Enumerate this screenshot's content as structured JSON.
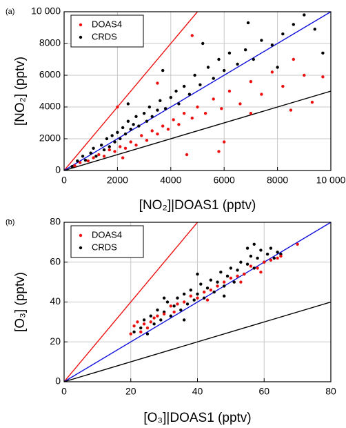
{
  "chart_data": [
    {
      "type": "scatter",
      "panel_label": "(a)",
      "xlabel": "[NO₂]|DOAS1 (pptv)",
      "ylabel": "[NO₂] (pptv)",
      "xlim": [
        0,
        10000
      ],
      "ylim": [
        0,
        10000
      ],
      "xticks": [
        0,
        2000,
        4000,
        6000,
        8000,
        {
          "value": 10000,
          "label": "10 000"
        }
      ],
      "yticks": [
        0,
        2000,
        4000,
        6000,
        8000,
        {
          "value": 10000,
          "label": "10 000"
        }
      ],
      "grid": true,
      "legend": "upper left",
      "series": [
        {
          "name": "CRDS",
          "color": "#000000",
          "x": [
            300,
            500,
            700,
            800,
            1000,
            1100,
            1200,
            1400,
            1500,
            1600,
            1700,
            1800,
            1900,
            2000,
            2100,
            2200,
            2300,
            2400,
            2500,
            2600,
            2700,
            2800,
            3000,
            3100,
            3200,
            3300,
            3500,
            3600,
            3800,
            4000,
            4200,
            4300,
            4500,
            4700,
            4900,
            5100,
            5400,
            5600,
            5800,
            6000,
            6200,
            6500,
            6800,
            7100,
            7400,
            7800,
            8200,
            8600,
            9000,
            9400,
            9700,
            5200,
            3700,
            2400,
            8000,
            6900
          ],
          "values": [
            250,
            600,
            900,
            650,
            1100,
            1400,
            900,
            1600,
            1300,
            2000,
            1500,
            2200,
            1800,
            2400,
            2000,
            2700,
            2300,
            3100,
            2600,
            2900,
            3400,
            2800,
            3600,
            3100,
            4000,
            3400,
            3800,
            4400,
            3900,
            4600,
            5000,
            4200,
            5300,
            4800,
            6000,
            5400,
            6500,
            5800,
            7000,
            6300,
            7400,
            6700,
            7600,
            7000,
            8200,
            7900,
            8600,
            9200,
            9800,
            8900,
            7400,
            8000,
            6300,
            4200,
            6500,
            9300
          ]
        },
        {
          "name": "DOAS4",
          "color": "#ee1111",
          "x": [
            400,
            600,
            900,
            1100,
            1300,
            1500,
            1700,
            1900,
            2100,
            2300,
            2500,
            2700,
            2900,
            3100,
            3300,
            3500,
            3700,
            3900,
            4100,
            4300,
            4500,
            4800,
            5000,
            5300,
            5600,
            5900,
            6200,
            6600,
            7000,
            7400,
            7800,
            8200,
            8600,
            9000,
            9300,
            9700,
            2000,
            3500,
            4800,
            6000,
            5800,
            4600,
            8500,
            7000,
            2200
          ],
          "values": [
            300,
            500,
            600,
            800,
            1000,
            900,
            1300,
            1200,
            1500,
            1400,
            1800,
            1600,
            2200,
            1900,
            2500,
            2300,
            2800,
            2600,
            3200,
            2900,
            3600,
            3300,
            4000,
            3600,
            4500,
            3900,
            5000,
            4200,
            5600,
            4800,
            6200,
            5300,
            7000,
            6000,
            4300,
            5900,
            4000,
            5500,
            8500,
            1800,
            1200,
            1000,
            3800,
            3600,
            800
          ]
        }
      ],
      "reference_lines": [
        {
          "color": "#ee1111",
          "x": [
            0,
            5000
          ],
          "y": [
            0,
            10000
          ]
        },
        {
          "color": "#1111dd",
          "x": [
            0,
            10000
          ],
          "y": [
            0,
            10000
          ]
        },
        {
          "color": "#000000",
          "x": [
            0,
            10000
          ],
          "y": [
            0,
            5000
          ]
        }
      ]
    },
    {
      "type": "scatter",
      "panel_label": "(b)",
      "xlabel": "[O₃]|DOAS1 (pptv)",
      "ylabel": "[O₃] (pptv)",
      "xlim": [
        0,
        80
      ],
      "ylim": [
        0,
        80
      ],
      "xticks": [
        0,
        20,
        40,
        60,
        80
      ],
      "yticks": [
        0,
        20,
        40,
        60,
        80
      ],
      "grid": true,
      "legend": "upper left",
      "series": [
        {
          "name": "CRDS",
          "color": "#000000",
          "x": [
            21,
            23,
            24,
            25,
            26,
            27,
            28,
            29,
            30,
            31,
            32,
            33,
            34,
            35,
            36,
            37,
            38,
            39,
            40,
            41,
            42,
            43,
            44,
            45,
            46,
            47,
            48,
            49,
            50,
            51,
            52,
            53,
            54,
            55,
            56,
            57,
            58,
            59,
            60,
            61,
            62,
            63,
            64,
            65,
            57,
            55,
            30,
            40,
            36,
            48
          ],
          "values": [
            25,
            27,
            31,
            24,
            33,
            29,
            36,
            31,
            35,
            40,
            33,
            38,
            42,
            36,
            44,
            39,
            46,
            41,
            44,
            49,
            42,
            47,
            51,
            45,
            50,
            55,
            48,
            53,
            57,
            50,
            56,
            60,
            54,
            59,
            63,
            57,
            62,
            66,
            60,
            64,
            67,
            62,
            65,
            64,
            69,
            67,
            42,
            54,
            31,
            43
          ]
        },
        {
          "name": "DOAS4",
          "color": "#ee1111",
          "x": [
            20,
            21,
            22,
            23,
            24,
            25,
            26,
            27,
            28,
            30,
            32,
            34,
            36,
            38,
            40,
            42,
            44,
            46,
            48,
            50,
            52,
            54,
            56,
            58,
            60,
            62,
            64,
            65,
            70,
            33,
            43,
            53,
            59
          ],
          "values": [
            24,
            28,
            30,
            25,
            29,
            27,
            30,
            32,
            33,
            34,
            38,
            39,
            40,
            43,
            42,
            45,
            46,
            48,
            50,
            52,
            53,
            54,
            58,
            57,
            60,
            61,
            62,
            63,
            69,
            35,
            41,
            50,
            55
          ]
        }
      ],
      "reference_lines": [
        {
          "color": "#ee1111",
          "x": [
            0,
            40
          ],
          "y": [
            0,
            80
          ]
        },
        {
          "color": "#1111dd",
          "x": [
            0,
            80
          ],
          "y": [
            0,
            80
          ]
        },
        {
          "color": "#000000",
          "x": [
            0,
            80
          ],
          "y": [
            0,
            40
          ]
        }
      ]
    }
  ]
}
